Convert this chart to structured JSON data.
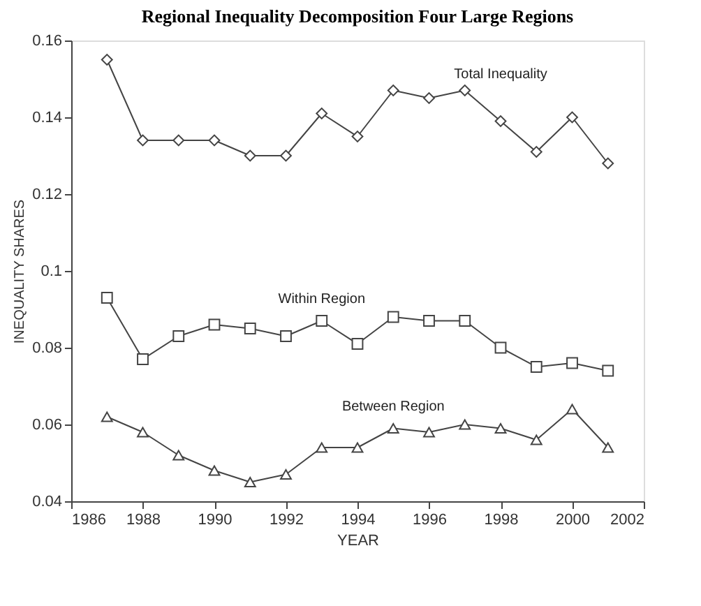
{
  "chart_data": {
    "type": "line",
    "title": "Regional Inequality Decomposition Four Large Regions",
    "xlabel": "YEAR",
    "ylabel": "INEQUALITY SHARES",
    "x": [
      1987,
      1988,
      1989,
      1990,
      1991,
      1992,
      1993,
      1994,
      1995,
      1996,
      1997,
      1998,
      1999,
      2000,
      2001
    ],
    "series": [
      {
        "name": "Total Inequality",
        "color": "#444444",
        "marker": "diamond",
        "values": [
          0.155,
          0.134,
          0.134,
          0.134,
          0.13,
          0.13,
          0.141,
          0.135,
          0.147,
          0.145,
          0.147,
          0.139,
          0.131,
          0.14,
          0.128
        ]
      },
      {
        "name": "Within Region",
        "color": "#444444",
        "marker": "square",
        "values": [
          0.093,
          0.077,
          0.083,
          0.086,
          0.085,
          0.083,
          0.087,
          0.081,
          0.088,
          0.087,
          0.087,
          0.08,
          0.075,
          0.076,
          0.074
        ]
      },
      {
        "name": "Between Region",
        "color": "#444444",
        "marker": "triangle",
        "values": [
          0.062,
          0.058,
          0.052,
          0.048,
          0.045,
          0.047,
          0.054,
          0.054,
          0.059,
          0.058,
          0.06,
          0.059,
          0.056,
          0.064,
          0.054
        ]
      }
    ],
    "xlim": [
      1986,
      2002
    ],
    "xticks": [
      1986,
      1988,
      1990,
      1992,
      1994,
      1996,
      1998,
      2000,
      2002
    ],
    "ylim": [
      0.04,
      0.16
    ],
    "yticks": [
      0.04,
      0.06,
      0.08,
      {
        "value": 0.1,
        "label": "0.1"
      },
      0.12,
      0.14,
      0.16
    ],
    "grid": false,
    "line_style": "solid"
  }
}
